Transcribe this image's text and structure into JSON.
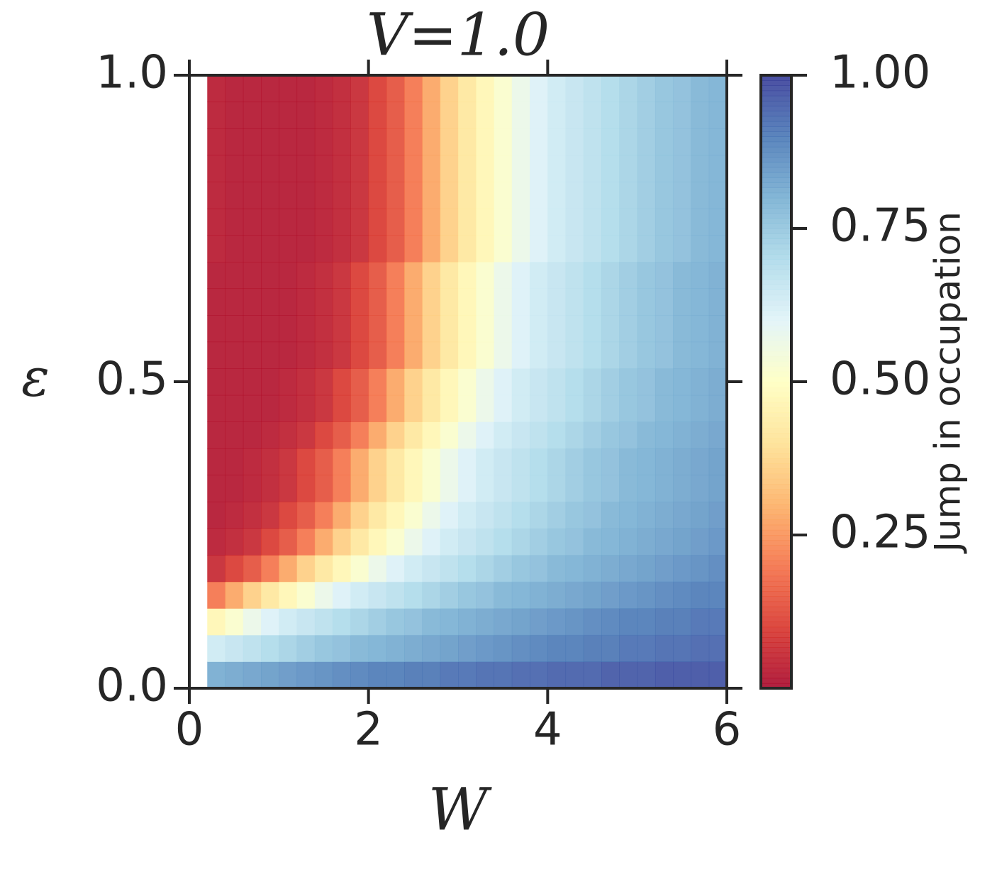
{
  "chart_data": {
    "type": "heatmap",
    "title": "V=1.0",
    "x_label": "W",
    "y_label": "ε",
    "colorbar_label": "Jump in occupation",
    "colormap": "RdYlBu",
    "x_extent": [
      0.2,
      6.0
    ],
    "y_extent": [
      0,
      1
    ],
    "xlim": [
      0,
      6
    ],
    "ylim": [
      0,
      1
    ],
    "xticks": [
      0,
      2,
      4,
      6
    ],
    "yticks": [
      {
        "value": 0,
        "label": "0.0"
      },
      {
        "value": 0.5,
        "label": "0.5"
      },
      {
        "value": 1,
        "label": "1.0"
      }
    ],
    "clim": [
      0,
      1
    ],
    "cticks": [
      {
        "value": 0.25,
        "label": "0.25"
      },
      {
        "value": 0.5,
        "label": "0.50"
      },
      {
        "value": 0.75,
        "label": "0.75"
      },
      {
        "value": 1,
        "label": "1.00"
      }
    ],
    "z": [
      [
        0.81,
        0.82,
        0.83,
        0.84,
        0.85,
        0.86,
        0.87,
        0.88,
        0.89,
        0.9,
        0.9,
        0.91,
        0.91,
        0.92,
        0.92,
        0.93,
        0.93,
        0.94,
        0.94,
        0.95,
        0.95,
        0.95,
        0.96,
        0.96,
        0.96,
        0.97,
        0.97,
        0.97,
        0.97
      ],
      [
        0.64,
        0.66,
        0.68,
        0.7,
        0.72,
        0.74,
        0.76,
        0.77,
        0.79,
        0.8,
        0.81,
        0.82,
        0.83,
        0.84,
        0.85,
        0.86,
        0.87,
        0.88,
        0.89,
        0.9,
        0.9,
        0.91,
        0.91,
        0.92,
        0.92,
        0.93,
        0.93,
        0.94,
        0.94
      ],
      [
        0.47,
        0.52,
        0.57,
        0.61,
        0.64,
        0.66,
        0.68,
        0.7,
        0.72,
        0.74,
        0.76,
        0.77,
        0.79,
        0.8,
        0.81,
        0.82,
        0.83,
        0.84,
        0.85,
        0.86,
        0.87,
        0.88,
        0.89,
        0.9,
        0.9,
        0.91,
        0.91,
        0.92,
        0.92
      ],
      [
        0.2,
        0.28,
        0.36,
        0.42,
        0.47,
        0.52,
        0.57,
        0.61,
        0.64,
        0.66,
        0.68,
        0.7,
        0.72,
        0.74,
        0.76,
        0.77,
        0.79,
        0.8,
        0.81,
        0.82,
        0.83,
        0.84,
        0.85,
        0.86,
        0.87,
        0.88,
        0.89,
        0.9,
        0.9
      ],
      [
        0.06,
        0.1,
        0.14,
        0.2,
        0.28,
        0.36,
        0.42,
        0.47,
        0.52,
        0.57,
        0.61,
        0.64,
        0.66,
        0.68,
        0.7,
        0.72,
        0.74,
        0.76,
        0.77,
        0.79,
        0.8,
        0.81,
        0.82,
        0.83,
        0.84,
        0.85,
        0.86,
        0.87,
        0.88
      ],
      [
        0.03,
        0.04,
        0.06,
        0.1,
        0.14,
        0.2,
        0.28,
        0.36,
        0.42,
        0.47,
        0.52,
        0.57,
        0.61,
        0.64,
        0.66,
        0.68,
        0.7,
        0.72,
        0.74,
        0.76,
        0.77,
        0.79,
        0.8,
        0.81,
        0.82,
        0.83,
        0.84,
        0.85,
        0.86
      ],
      [
        0.02,
        0.03,
        0.04,
        0.06,
        0.1,
        0.14,
        0.2,
        0.28,
        0.36,
        0.42,
        0.47,
        0.52,
        0.57,
        0.61,
        0.64,
        0.66,
        0.68,
        0.7,
        0.72,
        0.74,
        0.76,
        0.77,
        0.79,
        0.8,
        0.81,
        0.82,
        0.83,
        0.84,
        0.85
      ],
      [
        0.02,
        0.02,
        0.03,
        0.04,
        0.06,
        0.1,
        0.14,
        0.2,
        0.28,
        0.36,
        0.42,
        0.47,
        0.52,
        0.57,
        0.61,
        0.64,
        0.66,
        0.68,
        0.7,
        0.72,
        0.74,
        0.76,
        0.77,
        0.79,
        0.8,
        0.81,
        0.82,
        0.83,
        0.84
      ],
      [
        0.02,
        0.02,
        0.03,
        0.04,
        0.06,
        0.1,
        0.14,
        0.2,
        0.28,
        0.36,
        0.42,
        0.47,
        0.52,
        0.57,
        0.61,
        0.64,
        0.66,
        0.68,
        0.7,
        0.72,
        0.74,
        0.76,
        0.77,
        0.79,
        0.8,
        0.81,
        0.82,
        0.83,
        0.84
      ],
      [
        0.02,
        0.02,
        0.02,
        0.03,
        0.04,
        0.06,
        0.1,
        0.14,
        0.2,
        0.28,
        0.36,
        0.42,
        0.47,
        0.52,
        0.57,
        0.61,
        0.64,
        0.66,
        0.68,
        0.7,
        0.72,
        0.74,
        0.76,
        0.77,
        0.79,
        0.8,
        0.81,
        0.82,
        0.83
      ],
      [
        0.02,
        0.02,
        0.02,
        0.02,
        0.03,
        0.04,
        0.06,
        0.1,
        0.14,
        0.2,
        0.28,
        0.36,
        0.42,
        0.47,
        0.52,
        0.57,
        0.61,
        0.64,
        0.66,
        0.68,
        0.7,
        0.72,
        0.74,
        0.76,
        0.77,
        0.79,
        0.8,
        0.81,
        0.82
      ],
      [
        0.02,
        0.02,
        0.02,
        0.02,
        0.03,
        0.04,
        0.06,
        0.1,
        0.14,
        0.2,
        0.28,
        0.36,
        0.42,
        0.47,
        0.52,
        0.57,
        0.61,
        0.64,
        0.66,
        0.68,
        0.7,
        0.72,
        0.74,
        0.76,
        0.77,
        0.79,
        0.8,
        0.81,
        0.82
      ],
      [
        0.02,
        0.02,
        0.02,
        0.02,
        0.02,
        0.03,
        0.04,
        0.06,
        0.1,
        0.14,
        0.2,
        0.28,
        0.36,
        0.42,
        0.47,
        0.52,
        0.57,
        0.61,
        0.64,
        0.66,
        0.68,
        0.7,
        0.72,
        0.74,
        0.76,
        0.77,
        0.79,
        0.8,
        0.81
      ],
      [
        0.02,
        0.02,
        0.02,
        0.02,
        0.02,
        0.03,
        0.04,
        0.06,
        0.1,
        0.14,
        0.2,
        0.28,
        0.36,
        0.42,
        0.47,
        0.52,
        0.57,
        0.61,
        0.64,
        0.66,
        0.68,
        0.7,
        0.72,
        0.74,
        0.76,
        0.77,
        0.79,
        0.8,
        0.81
      ],
      [
        0.02,
        0.02,
        0.02,
        0.02,
        0.02,
        0.03,
        0.04,
        0.06,
        0.1,
        0.14,
        0.2,
        0.28,
        0.36,
        0.42,
        0.47,
        0.52,
        0.57,
        0.61,
        0.64,
        0.66,
        0.68,
        0.7,
        0.72,
        0.74,
        0.76,
        0.77,
        0.79,
        0.8,
        0.81
      ],
      [
        0.02,
        0.02,
        0.02,
        0.02,
        0.02,
        0.03,
        0.04,
        0.06,
        0.1,
        0.14,
        0.2,
        0.28,
        0.36,
        0.42,
        0.47,
        0.52,
        0.57,
        0.61,
        0.64,
        0.66,
        0.68,
        0.7,
        0.72,
        0.74,
        0.76,
        0.77,
        0.79,
        0.8,
        0.81
      ],
      [
        0.03,
        0.02,
        0.02,
        0.02,
        0.02,
        0.02,
        0.03,
        0.04,
        0.06,
        0.1,
        0.14,
        0.2,
        0.28,
        0.36,
        0.42,
        0.47,
        0.52,
        0.57,
        0.61,
        0.64,
        0.66,
        0.68,
        0.7,
        0.72,
        0.74,
        0.76,
        0.77,
        0.79,
        0.8
      ],
      [
        0.03,
        0.02,
        0.02,
        0.02,
        0.02,
        0.02,
        0.03,
        0.04,
        0.06,
        0.1,
        0.14,
        0.2,
        0.28,
        0.36,
        0.42,
        0.47,
        0.52,
        0.57,
        0.61,
        0.64,
        0.66,
        0.68,
        0.7,
        0.72,
        0.74,
        0.76,
        0.77,
        0.79,
        0.8
      ],
      [
        0.03,
        0.02,
        0.02,
        0.02,
        0.02,
        0.02,
        0.03,
        0.04,
        0.06,
        0.1,
        0.14,
        0.2,
        0.28,
        0.36,
        0.42,
        0.47,
        0.52,
        0.57,
        0.61,
        0.64,
        0.66,
        0.68,
        0.7,
        0.72,
        0.74,
        0.76,
        0.77,
        0.79,
        0.8
      ],
      [
        0.03,
        0.02,
        0.02,
        0.02,
        0.02,
        0.02,
        0.03,
        0.04,
        0.06,
        0.1,
        0.14,
        0.2,
        0.28,
        0.36,
        0.42,
        0.47,
        0.52,
        0.57,
        0.61,
        0.64,
        0.66,
        0.68,
        0.7,
        0.72,
        0.74,
        0.76,
        0.77,
        0.79,
        0.8
      ],
      [
        0.03,
        0.02,
        0.02,
        0.02,
        0.02,
        0.02,
        0.03,
        0.04,
        0.06,
        0.1,
        0.14,
        0.2,
        0.28,
        0.36,
        0.42,
        0.47,
        0.52,
        0.57,
        0.61,
        0.64,
        0.66,
        0.68,
        0.7,
        0.72,
        0.74,
        0.76,
        0.77,
        0.79,
        0.8
      ],
      [
        0.03,
        0.02,
        0.02,
        0.02,
        0.02,
        0.02,
        0.03,
        0.04,
        0.06,
        0.1,
        0.14,
        0.2,
        0.28,
        0.36,
        0.42,
        0.47,
        0.52,
        0.57,
        0.61,
        0.64,
        0.66,
        0.68,
        0.7,
        0.72,
        0.74,
        0.76,
        0.77,
        0.79,
        0.8
      ],
      [
        0.03,
        0.02,
        0.02,
        0.02,
        0.02,
        0.02,
        0.03,
        0.04,
        0.06,
        0.1,
        0.14,
        0.2,
        0.28,
        0.36,
        0.42,
        0.47,
        0.52,
        0.57,
        0.61,
        0.64,
        0.66,
        0.68,
        0.7,
        0.72,
        0.74,
        0.76,
        0.77,
        0.79,
        0.8
      ]
    ]
  }
}
